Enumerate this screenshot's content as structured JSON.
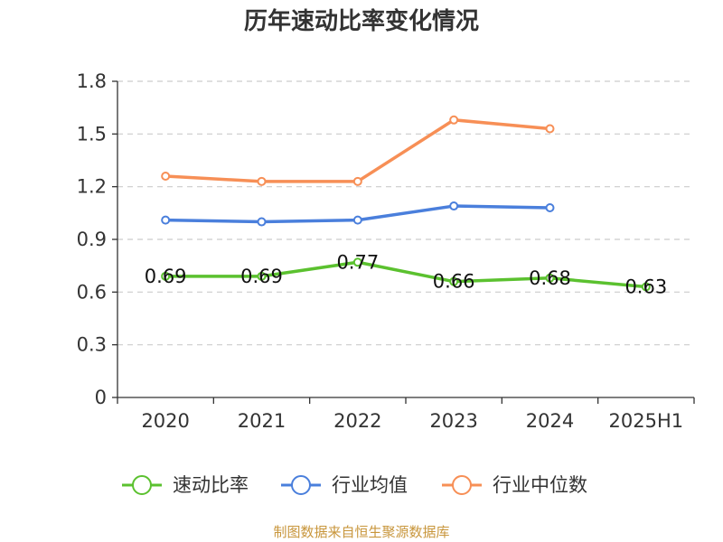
{
  "chart_data": {
    "type": "line",
    "title": "历年速动比率变化情况",
    "categories": [
      "2020",
      "2021",
      "2022",
      "2023",
      "2024",
      "2025H1"
    ],
    "ylim": [
      0,
      1.8
    ],
    "yticks": [
      "0",
      "0.3",
      "0.6",
      "0.9",
      "1.2",
      "1.5",
      "1.8"
    ],
    "grid": true,
    "legend_position": "bottom",
    "series": [
      {
        "name": "速动比率",
        "color": "#5bc12f",
        "values": [
          0.69,
          0.69,
          0.77,
          0.66,
          0.68,
          0.63
        ],
        "labels": [
          "0.69",
          "0.69",
          "0.77",
          "0.66",
          "0.68",
          "0.63"
        ],
        "show_labels": true
      },
      {
        "name": "行业均值",
        "color": "#4a7fdc",
        "values": [
          1.01,
          1.0,
          1.01,
          1.09,
          1.08,
          null
        ],
        "show_labels": false
      },
      {
        "name": "行业中位数",
        "color": "#f78f56",
        "values": [
          1.26,
          1.23,
          1.23,
          1.58,
          1.53,
          null
        ],
        "show_labels": false
      }
    ]
  },
  "footer": {
    "source": "制图数据来自恒生聚源数据库"
  }
}
